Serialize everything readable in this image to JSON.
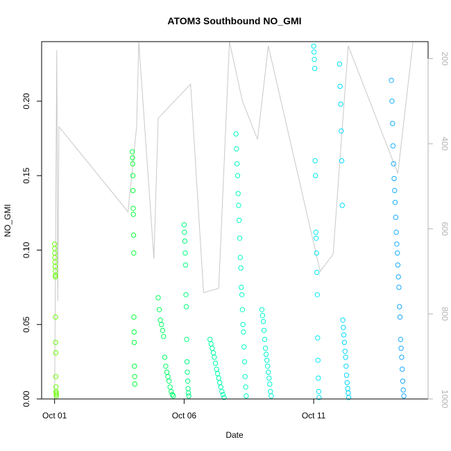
{
  "chart_data": {
    "type": "scatter",
    "title": "ATOM3 Southbound NO_GMI",
    "xlabel": "Date",
    "ylabel": "NO_GMI",
    "x_ticks": [
      "Oct 01",
      "Oct 06",
      "Oct 11"
    ],
    "y_ticks": [
      "0.00",
      "0.05",
      "0.10",
      "0.15",
      "0.20"
    ],
    "y_right_ticks": [
      "200",
      "400",
      "600",
      "800",
      "1000"
    ],
    "xlim": [
      "2016-09-30T12:00",
      "2016-10-15T10:00"
    ],
    "ylim": [
      0.0,
      0.24
    ],
    "y_right_lim": [
      1000,
      160
    ],
    "y_right_reversed": true,
    "colors": {
      "pressure_trace": "#c8c8c8",
      "point_gradient": [
        "#7cfc00",
        "#00ff40",
        "#00ffc0",
        "#00e5ff",
        "#1e90ff"
      ]
    },
    "pressure_trace": [
      [
        "2016-10-01T00:00",
        1000
      ],
      [
        "2016-10-01T02:00",
        180
      ],
      [
        "2016-10-01T03:00",
        770
      ],
      [
        "2016-10-01T04:00",
        360
      ],
      [
        "2016-10-03T20:00",
        560
      ],
      [
        "2016-10-04T04:00",
        360
      ],
      [
        "2016-10-04T06:00",
        160
      ],
      [
        "2016-10-04T20:00",
        670
      ],
      [
        "2016-10-05T00:00",
        340
      ],
      [
        "2016-10-06T06:00",
        260
      ],
      [
        "2016-10-06T18:00",
        750
      ],
      [
        "2016-10-07T08:00",
        740
      ],
      [
        "2016-10-07T18:00",
        160
      ],
      [
        "2016-10-08T06:00",
        300
      ],
      [
        "2016-10-08T20:00",
        390
      ],
      [
        "2016-10-09T06:00",
        170
      ],
      [
        "2016-10-11T06:00",
        700
      ],
      [
        "2016-10-11T18:00",
        660
      ],
      [
        "2016-10-12T08:00",
        170
      ],
      [
        "2016-10-14T06:00",
        470
      ],
      [
        "2016-10-14T20:00",
        160
      ]
    ],
    "series": [
      {
        "x": [
          "2016-10-01T00:00",
          "2016-10-01T00:06",
          "2016-10-01T00:12",
          "2016-10-01T00:18",
          "2016-10-01T00:24",
          "2016-10-01T00:30",
          "2016-10-01T00:36",
          "2016-10-01T00:42",
          "2016-10-01T00:48",
          "2016-10-01T00:54",
          "2016-10-01T01:00",
          "2016-10-01T01:06",
          "2016-10-01T01:12",
          "2016-10-01T01:18",
          "2016-10-01T01:24",
          "2016-10-01T01:30",
          "2016-10-01T01:36",
          "2016-10-01T01:42"
        ],
        "y": [
          0.104,
          0.101,
          0.098,
          0.095,
          0.092,
          0.089,
          0.086,
          0.083,
          0.082,
          0.055,
          0.038,
          0.031,
          0.015,
          0.008,
          0.005,
          0.004,
          0.003,
          0.002
        ]
      },
      {
        "x": [
          "2016-10-04T00:00",
          "2016-10-04T00:10",
          "2016-10-04T00:20",
          "2016-10-04T00:30",
          "2016-10-04T00:40",
          "2016-10-04T00:50",
          "2016-10-04T01:00",
          "2016-10-04T01:10",
          "2016-10-04T01:20",
          "2016-10-04T01:30",
          "2016-10-04T01:40",
          "2016-10-04T01:50",
          "2016-10-04T02:00",
          "2016-10-04T02:10",
          "2016-10-04T02:20"
        ],
        "y": [
          0.166,
          0.162,
          0.158,
          0.15,
          0.14,
          0.128,
          0.124,
          0.11,
          0.098,
          0.055,
          0.045,
          0.038,
          0.022,
          0.015,
          0.01
        ]
      },
      {
        "x": [
          "2016-10-05T00:00",
          "2016-10-05T01:00",
          "2016-10-05T02:00",
          "2016-10-05T03:00",
          "2016-10-05T04:00",
          "2016-10-05T05:00",
          "2016-10-05T06:00",
          "2016-10-05T07:00",
          "2016-10-05T08:00",
          "2016-10-05T09:00",
          "2016-10-05T10:00",
          "2016-10-05T11:00",
          "2016-10-05T12:00",
          "2016-10-05T13:00",
          "2016-10-05T14:00"
        ],
        "y": [
          0.068,
          0.06,
          0.053,
          0.05,
          0.046,
          0.042,
          0.028,
          0.022,
          0.018,
          0.015,
          0.012,
          0.008,
          0.005,
          0.003,
          0.002
        ]
      },
      {
        "x": [
          "2016-10-06T00:00",
          "2016-10-06T00:20",
          "2016-10-06T00:40",
          "2016-10-06T01:00",
          "2016-10-06T01:20",
          "2016-10-06T01:40",
          "2016-10-06T02:00",
          "2016-10-06T02:20",
          "2016-10-06T02:40",
          "2016-10-06T03:00",
          "2016-10-06T03:20",
          "2016-10-06T03:40",
          "2016-10-06T04:00",
          "2016-10-06T04:20"
        ],
        "y": [
          0.117,
          0.112,
          0.106,
          0.098,
          0.09,
          0.07,
          0.062,
          0.04,
          0.025,
          0.018,
          0.012,
          0.007,
          0.004,
          0.002
        ]
      },
      {
        "x": [
          "2016-10-07T00:00",
          "2016-10-07T01:00",
          "2016-10-07T02:00",
          "2016-10-07T03:00",
          "2016-10-07T04:00",
          "2016-10-07T05:00",
          "2016-10-07T06:00",
          "2016-10-07T07:00",
          "2016-10-07T08:00",
          "2016-10-07T09:00",
          "2016-10-07T10:00",
          "2016-10-07T11:00",
          "2016-10-07T12:00",
          "2016-10-07T13:00"
        ],
        "y": [
          0.04,
          0.037,
          0.034,
          0.031,
          0.028,
          0.024,
          0.02,
          0.017,
          0.014,
          0.011,
          0.008,
          0.005,
          0.003,
          0.001
        ]
      },
      {
        "x": [
          "2016-10-08T00:00",
          "2016-10-08T00:30",
          "2016-10-08T01:00",
          "2016-10-08T01:30",
          "2016-10-08T02:00",
          "2016-10-08T02:30",
          "2016-10-08T03:00",
          "2016-10-08T03:30",
          "2016-10-08T04:00",
          "2016-10-08T04:30",
          "2016-10-08T05:00",
          "2016-10-08T05:30",
          "2016-10-08T06:00",
          "2016-10-08T06:30",
          "2016-10-08T07:00",
          "2016-10-08T07:30",
          "2016-10-08T08:00",
          "2016-10-08T08:30",
          "2016-10-08T09:00",
          "2016-10-08T09:30"
        ],
        "y": [
          0.178,
          0.168,
          0.158,
          0.15,
          0.138,
          0.13,
          0.12,
          0.108,
          0.095,
          0.088,
          0.075,
          0.07,
          0.06,
          0.05,
          0.045,
          0.035,
          0.025,
          0.015,
          0.008,
          0.002
        ]
      },
      {
        "x": [
          "2016-10-09T00:00",
          "2016-10-09T00:40",
          "2016-10-09T01:20",
          "2016-10-09T02:00",
          "2016-10-09T02:40",
          "2016-10-09T03:20",
          "2016-10-09T04:00",
          "2016-10-09T04:40",
          "2016-10-09T05:20",
          "2016-10-09T06:00",
          "2016-10-09T06:40",
          "2016-10-09T07:20",
          "2016-10-09T08:00",
          "2016-10-09T08:40"
        ],
        "y": [
          0.06,
          0.056,
          0.052,
          0.046,
          0.04,
          0.034,
          0.03,
          0.026,
          0.022,
          0.018,
          0.014,
          0.01,
          0.005,
          0.002
        ]
      },
      {
        "x": [
          "2016-10-11T00:00",
          "2016-10-11T00:20",
          "2016-10-11T00:40",
          "2016-10-11T01:00",
          "2016-10-11T01:20",
          "2016-10-11T01:40",
          "2016-10-11T02:00",
          "2016-10-11T02:20",
          "2016-10-11T02:40",
          "2016-10-11T03:00",
          "2016-10-11T03:20",
          "2016-10-11T03:40",
          "2016-10-11T04:00",
          "2016-10-11T04:20",
          "2016-10-11T04:40",
          "2016-10-11T05:00"
        ],
        "y": [
          0.237,
          0.233,
          0.228,
          0.222,
          0.16,
          0.15,
          0.112,
          0.108,
          0.098,
          0.085,
          0.07,
          0.041,
          0.026,
          0.014,
          0.005,
          0.001
        ]
      },
      {
        "x": [
          "2016-10-12T00:00",
          "2016-10-12T00:30",
          "2016-10-12T01:00",
          "2016-10-12T01:30",
          "2016-10-12T02:00",
          "2016-10-12T02:30",
          "2016-10-12T03:00",
          "2016-10-12T03:30",
          "2016-10-12T04:00",
          "2016-10-12T04:30",
          "2016-10-12T05:00",
          "2016-10-12T05:30",
          "2016-10-12T06:00",
          "2016-10-12T06:30",
          "2016-10-12T07:00",
          "2016-10-12T07:30",
          "2016-10-12T08:00",
          "2016-10-12T08:30"
        ],
        "y": [
          0.225,
          0.21,
          0.198,
          0.18,
          0.16,
          0.13,
          0.053,
          0.048,
          0.043,
          0.038,
          0.032,
          0.028,
          0.022,
          0.016,
          0.011,
          0.007,
          0.004,
          0.001
        ]
      },
      {
        "x": [
          "2016-10-14T00:00",
          "2016-10-14T00:30",
          "2016-10-14T01:00",
          "2016-10-14T01:30",
          "2016-10-14T02:00",
          "2016-10-14T02:30",
          "2016-10-14T03:00",
          "2016-10-14T03:30",
          "2016-10-14T04:00",
          "2016-10-14T04:30",
          "2016-10-14T05:00",
          "2016-10-14T05:30",
          "2016-10-14T06:00",
          "2016-10-14T06:30",
          "2016-10-14T07:00",
          "2016-10-14T07:30",
          "2016-10-14T08:00",
          "2016-10-14T08:30",
          "2016-10-14T09:00",
          "2016-10-14T09:30",
          "2016-10-14T10:00",
          "2016-10-14T10:30",
          "2016-10-14T11:00",
          "2016-10-14T11:30"
        ],
        "y": [
          0.214,
          0.2,
          0.185,
          0.17,
          0.158,
          0.148,
          0.14,
          0.132,
          0.122,
          0.112,
          0.104,
          0.098,
          0.09,
          0.082,
          0.075,
          0.062,
          0.055,
          0.04,
          0.034,
          0.028,
          0.02,
          0.012,
          0.006,
          0.002
        ]
      }
    ]
  }
}
